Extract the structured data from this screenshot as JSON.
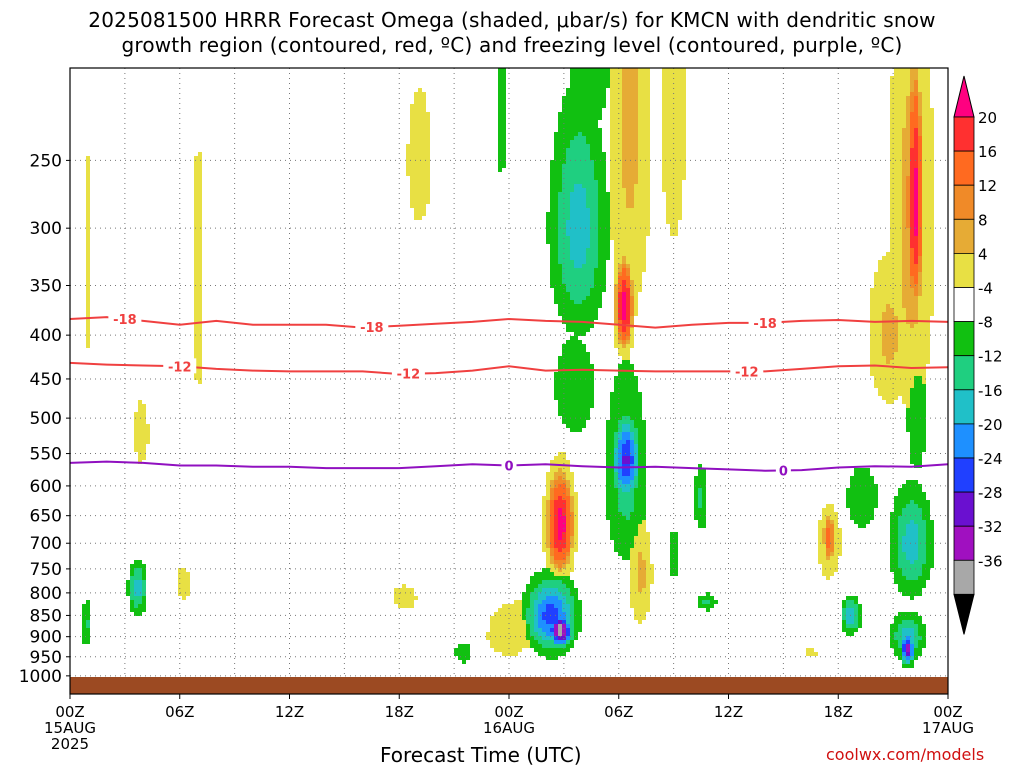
{
  "titles": {
    "line1": "2025081500 HRRR Forecast Omega (shaded, μbar/s) for KMCN with dendritic snow",
    "line2": "growth region (contoured, red, ºC) and freezing level (contoured, purple, ºC)"
  },
  "credit": "coolwx.com/models",
  "chart_data": {
    "type": "heatmap",
    "xlabel": "Forecast Time (UTC)",
    "ylabel": "",
    "ylim": [
      1050,
      195
    ],
    "x_hours": [
      0,
      6,
      12,
      18,
      24,
      30,
      36,
      42,
      48
    ],
    "x_tick_labels": [
      [
        "00Z",
        "15AUG",
        "2025"
      ],
      [
        "06Z"
      ],
      [
        "12Z"
      ],
      [
        "18Z"
      ],
      [
        "00Z",
        "16AUG"
      ],
      [
        "06Z"
      ],
      [
        "12Z"
      ],
      [
        "18Z"
      ],
      [
        "00Z",
        "17AUG"
      ]
    ],
    "y_ticks": [
      250,
      300,
      350,
      400,
      450,
      500,
      550,
      600,
      650,
      700,
      750,
      800,
      850,
      900,
      950,
      1000
    ],
    "colorbar": {
      "tick_labels": [
        "20",
        "16",
        "12",
        "8",
        "4",
        "-4",
        "-8",
        "-12",
        "-16",
        "-20",
        "-24",
        "-28",
        "-32",
        "-36"
      ],
      "colors": [
        "#ff0080",
        "#ff3030",
        "#ff6a20",
        "#f08a28",
        "#e6ab35",
        "#e8e044",
        "#ffffff",
        "#11c011",
        "#1fcf80",
        "#20c0c8",
        "#1e90ff",
        "#2040ff",
        "#6a10d0",
        "#a010c0",
        "#a8a8a8",
        "#000000"
      ]
    },
    "contours": [
      {
        "level": -18,
        "color": "#f04040",
        "labels_at_hours": [
          3,
          16.5,
          38
        ],
        "points": [
          [
            0,
            383
          ],
          [
            2,
            381
          ],
          [
            4,
            385
          ],
          [
            6,
            389
          ],
          [
            8,
            385
          ],
          [
            10,
            389
          ],
          [
            12,
            389
          ],
          [
            14,
            389
          ],
          [
            16,
            392
          ],
          [
            18,
            390
          ],
          [
            20,
            388
          ],
          [
            22,
            386
          ],
          [
            24,
            383
          ],
          [
            26,
            385
          ],
          [
            28,
            386
          ],
          [
            30,
            389
          ],
          [
            32,
            392
          ],
          [
            34,
            389
          ],
          [
            36,
            387
          ],
          [
            38,
            387
          ],
          [
            40,
            385
          ],
          [
            42,
            384
          ],
          [
            44,
            386
          ],
          [
            46,
            385
          ],
          [
            48,
            386
          ]
        ]
      },
      {
        "level": -12,
        "color": "#f04040",
        "labels_at_hours": [
          6,
          18.5,
          37
        ],
        "points": [
          [
            0,
            431
          ],
          [
            2,
            433
          ],
          [
            4,
            434
          ],
          [
            6,
            435
          ],
          [
            8,
            438
          ],
          [
            10,
            440
          ],
          [
            12,
            441
          ],
          [
            14,
            441
          ],
          [
            16,
            441
          ],
          [
            18,
            444
          ],
          [
            20,
            443
          ],
          [
            22,
            440
          ],
          [
            24,
            435
          ],
          [
            26,
            440
          ],
          [
            28,
            439
          ],
          [
            30,
            440
          ],
          [
            32,
            441
          ],
          [
            34,
            441
          ],
          [
            36,
            441
          ],
          [
            38,
            441
          ],
          [
            40,
            438
          ],
          [
            42,
            435
          ],
          [
            44,
            434
          ],
          [
            46,
            437
          ],
          [
            48,
            436
          ]
        ]
      },
      {
        "level": 0,
        "color": "#9010c0",
        "labels_at_hours": [
          24,
          39
        ],
        "points": [
          [
            0,
            564
          ],
          [
            2,
            562
          ],
          [
            4,
            564
          ],
          [
            6,
            568
          ],
          [
            8,
            568
          ],
          [
            10,
            570
          ],
          [
            12,
            570
          ],
          [
            14,
            572
          ],
          [
            16,
            572
          ],
          [
            18,
            572
          ],
          [
            20,
            569
          ],
          [
            22,
            566
          ],
          [
            24,
            568
          ],
          [
            26,
            566
          ],
          [
            28,
            569
          ],
          [
            30,
            571
          ],
          [
            32,
            570
          ],
          [
            34,
            572
          ],
          [
            36,
            574
          ],
          [
            38,
            576
          ],
          [
            40,
            575
          ],
          [
            42,
            571
          ],
          [
            44,
            569
          ],
          [
            46,
            570
          ],
          [
            48,
            566
          ]
        ]
      }
    ],
    "omega_features": [
      {
        "hour": 27.8,
        "pressure": 300,
        "value": -14,
        "h_halfwidth": 1.5,
        "p_halfwidth": 90
      },
      {
        "hour": 27.6,
        "pressure": 460,
        "value": -8,
        "h_halfwidth": 1.3,
        "p_halfwidth": 70
      },
      {
        "hour": 26.8,
        "pressure": 665,
        "value": 22,
        "h_halfwidth": 0.75,
        "p_halfwidth": 90
      },
      {
        "hour": 26.8,
        "pressure": 885,
        "value": -36,
        "h_halfwidth": 0.6,
        "p_halfwidth": 35
      },
      {
        "hour": 26.3,
        "pressure": 850,
        "value": -22,
        "h_halfwidth": 1.3,
        "p_halfwidth": 80
      },
      {
        "hour": 28.4,
        "pressure": 180,
        "value": -8,
        "h_halfwidth": 1.4,
        "p_halfwidth": 60
      },
      {
        "hour": 30.3,
        "pressure": 370,
        "value": 22,
        "h_halfwidth": 0.5,
        "p_halfwidth": 45
      },
      {
        "hour": 30.6,
        "pressure": 230,
        "value": 9,
        "h_halfwidth": 1.3,
        "p_halfwidth": 160
      },
      {
        "hour": 30.4,
        "pressure": 560,
        "value": -25,
        "h_halfwidth": 0.7,
        "p_halfwidth": 60
      },
      {
        "hour": 30.4,
        "pressure": 580,
        "value": -10,
        "h_halfwidth": 1.2,
        "p_halfwidth": 160
      },
      {
        "hour": 31.2,
        "pressure": 760,
        "value": 9,
        "h_halfwidth": 0.7,
        "p_halfwidth": 120
      },
      {
        "hour": 34.5,
        "pressure": 620,
        "value": -9,
        "h_halfwidth": 0.4,
        "p_halfwidth": 60
      },
      {
        "hour": 24.0,
        "pressure": 900,
        "value": 8,
        "h_halfwidth": 1.4,
        "p_halfwidth": 55
      },
      {
        "hour": 21.5,
        "pressure": 940,
        "value": -8,
        "h_halfwidth": 0.5,
        "p_halfwidth": 30
      },
      {
        "hour": 25.0,
        "pressure": 870,
        "value": 6,
        "h_halfwidth": 3.2,
        "p_halfwidth": 85
      },
      {
        "hour": 46.2,
        "pressure": 280,
        "value": 22,
        "h_halfwidth": 0.45,
        "p_halfwidth": 90
      },
      {
        "hour": 46.0,
        "pressure": 300,
        "value": 10,
        "h_halfwidth": 1.3,
        "p_halfwidth": 200
      },
      {
        "hour": 44.8,
        "pressure": 400,
        "value": 9,
        "h_halfwidth": 1.3,
        "p_halfwidth": 90
      },
      {
        "hour": 46.3,
        "pressure": 500,
        "value": -8,
        "h_halfwidth": 0.6,
        "p_halfwidth": 90
      },
      {
        "hour": 46.0,
        "pressure": 700,
        "value": -14,
        "h_halfwidth": 1.1,
        "p_halfwidth": 100
      },
      {
        "hour": 45.8,
        "pressure": 930,
        "value": -30,
        "h_halfwidth": 0.35,
        "p_halfwidth": 35
      },
      {
        "hour": 45.8,
        "pressure": 900,
        "value": -14,
        "h_halfwidth": 0.9,
        "p_halfwidth": 55
      },
      {
        "hour": 42.7,
        "pressure": 850,
        "value": -16,
        "h_halfwidth": 0.5,
        "p_halfwidth": 40
      },
      {
        "hour": 41.5,
        "pressure": 690,
        "value": 14,
        "h_halfwidth": 0.4,
        "p_halfwidth": 55
      },
      {
        "hour": 41.5,
        "pressure": 700,
        "value": 6,
        "h_halfwidth": 1.0,
        "p_halfwidth": 110
      },
      {
        "hour": 43.3,
        "pressure": 620,
        "value": -8,
        "h_halfwidth": 1.0,
        "p_halfwidth": 60
      },
      {
        "hour": 3.7,
        "pressure": 790,
        "value": -14,
        "h_halfwidth": 0.5,
        "p_halfwidth": 55
      },
      {
        "hour": 3.9,
        "pressure": 520,
        "value": 6,
        "h_halfwidth": 0.6,
        "p_halfwidth": 70
      },
      {
        "hour": 0.9,
        "pressure": 870,
        "value": -9,
        "h_halfwidth": 0.3,
        "p_halfwidth": 60
      },
      {
        "hour": 1.0,
        "pressure": 330,
        "value": 6,
        "h_halfwidth": 0.3,
        "p_halfwidth": 130
      },
      {
        "hour": 6.2,
        "pressure": 780,
        "value": 6,
        "h_halfwidth": 0.6,
        "p_halfwidth": 55
      },
      {
        "hour": 7.0,
        "pressure": 350,
        "value": 6,
        "h_halfwidth": 0.3,
        "p_halfwidth": 200
      },
      {
        "hour": 19.1,
        "pressure": 250,
        "value": 6,
        "h_halfwidth": 1.0,
        "p_halfwidth": 70
      },
      {
        "hour": 23.6,
        "pressure": 215,
        "value": -8,
        "h_halfwidth": 0.35,
        "p_halfwidth": 55
      },
      {
        "hour": 33.0,
        "pressure": 720,
        "value": -8,
        "h_halfwidth": 0.35,
        "p_halfwidth": 55
      },
      {
        "hour": 33.0,
        "pressure": 200,
        "value": 6,
        "h_halfwidth": 1.1,
        "p_halfwidth": 170
      },
      {
        "hour": 34.8,
        "pressure": 820,
        "value": -9,
        "h_halfwidth": 0.6,
        "p_halfwidth": 20
      },
      {
        "hour": 40.5,
        "pressure": 940,
        "value": 5,
        "h_halfwidth": 0.8,
        "p_halfwidth": 20
      },
      {
        "hour": 18.3,
        "pressure": 810,
        "value": 6,
        "h_halfwidth": 1.0,
        "p_halfwidth": 40
      }
    ]
  }
}
